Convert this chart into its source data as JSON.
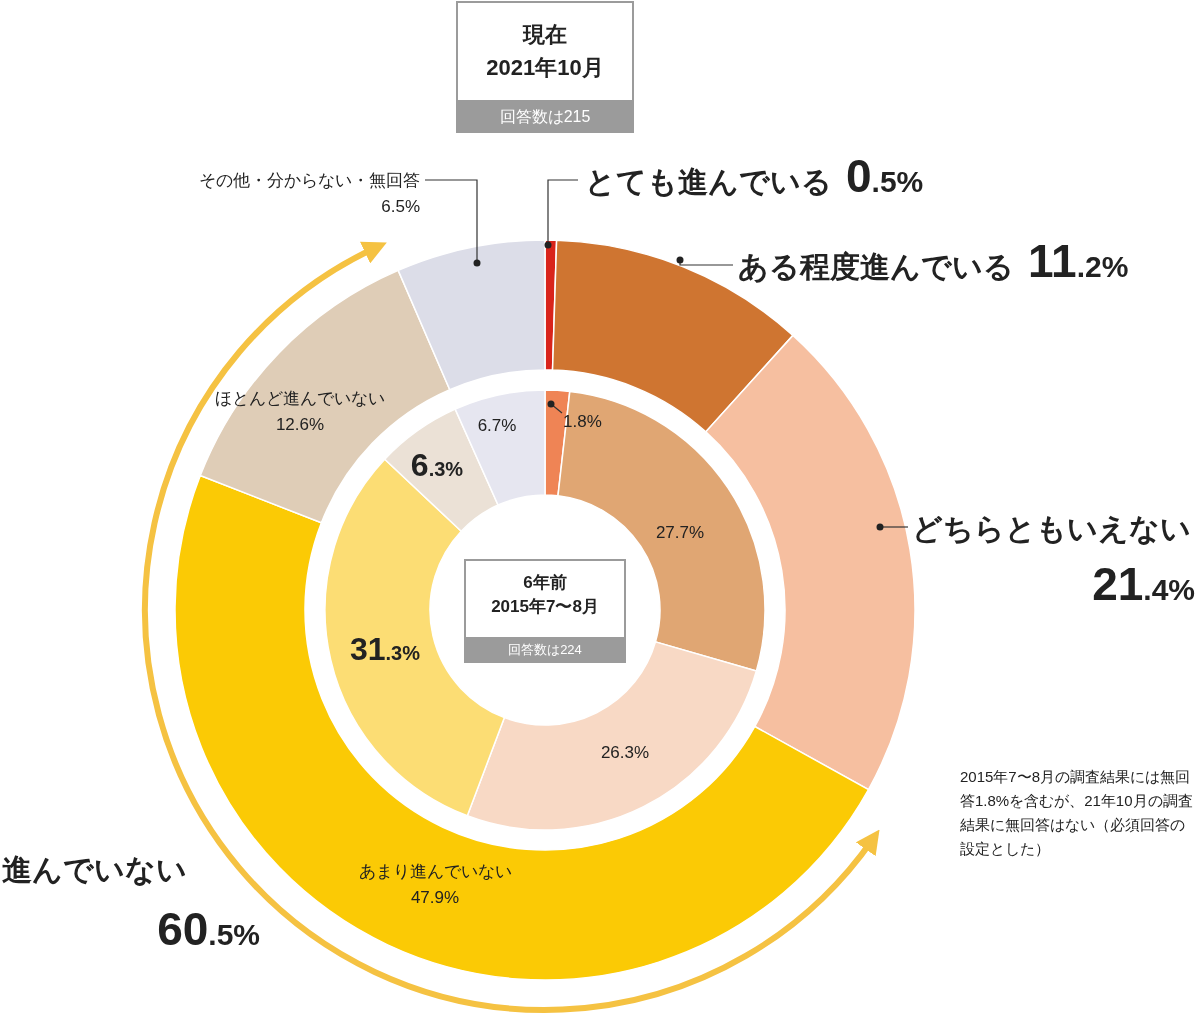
{
  "chart_data": [
    {
      "type": "donut",
      "title": "現在\n2021年10月",
      "subtitle": "回答数は215",
      "categories": [
        "とても進んでいる",
        "ある程度進んでいる",
        "どちらともいえない",
        "あまり進んでいない",
        "ほとんど進んでいない",
        "その他・分からない・無回答"
      ],
      "values": [
        0.5,
        11.2,
        21.4,
        47.9,
        12.6,
        6.5
      ],
      "colors": [
        "#d9241b",
        "#cf7531",
        "#f6bfa0",
        "#fbca05",
        "#dfcdb7",
        "#dcdde8"
      ],
      "value_labels": [
        "0.5%",
        "11.2%",
        "21.4%",
        "47.9%",
        "12.6%",
        "6.5%"
      ],
      "annotations": [
        "進んでいない",
        "60.5%",
        "2015年7〜8月の調査結果には無回答1.8%を含むが、21年10月の調査結果に無回答はない（必須回答の設定とした）"
      ]
    },
    {
      "type": "donut",
      "title": "6年前\n2015年7〜8月",
      "subtitle": "回答数は224",
      "categories": [
        null,
        null,
        null,
        null,
        null,
        null
      ],
      "values": [
        1.8,
        27.7,
        26.3,
        31.3,
        6.3,
        6.7
      ],
      "colors": [
        "#ef8455",
        "#e0a673",
        "#f8d9c5",
        "#fcdd74",
        "#ebe1d6",
        "#e6e6f0"
      ],
      "value_labels": [
        "1.8%",
        "27.7%",
        "26.3%",
        "31.3%",
        "6.3%",
        "6.7%"
      ]
    }
  ]
}
